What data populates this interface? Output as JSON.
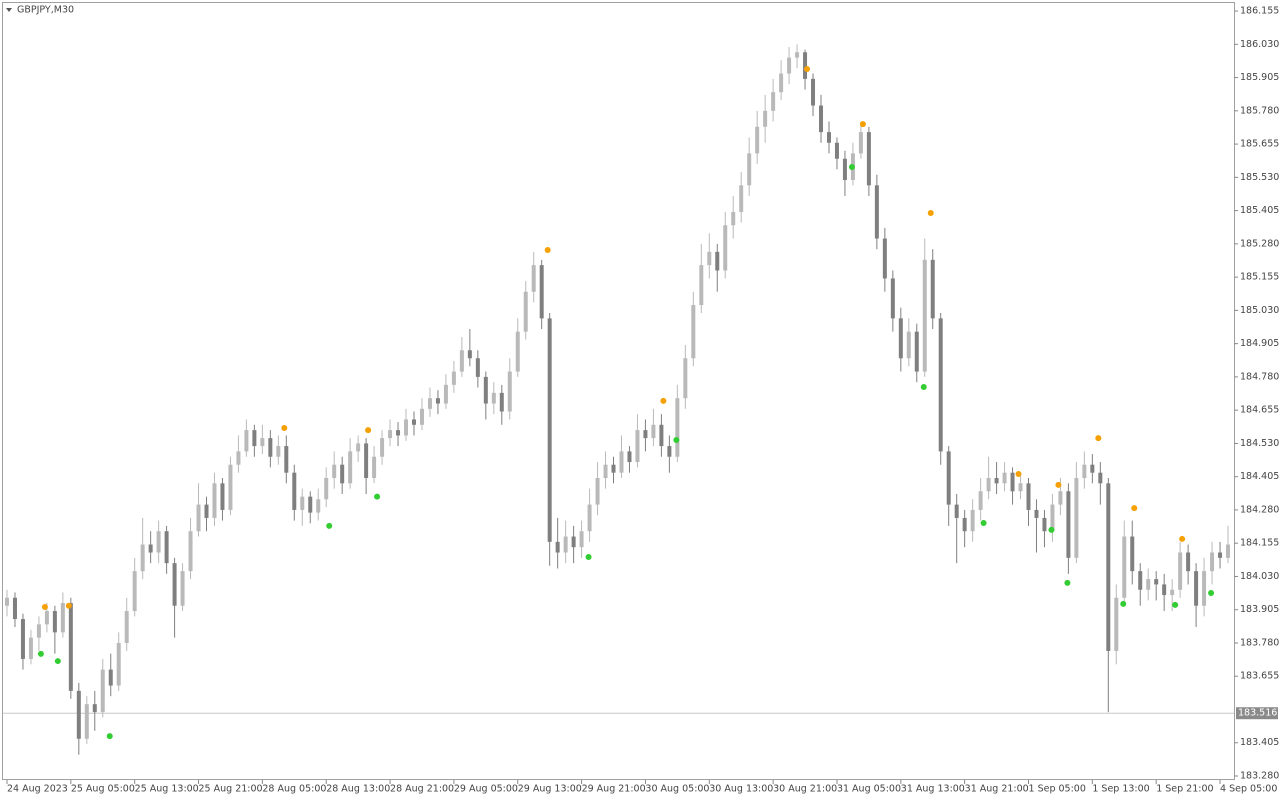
{
  "chart_data": {
    "type": "candlestick",
    "title": "GBPJPY,M30",
    "up_color": "#b9b9b9",
    "down_color": "#7f7f7f",
    "last_price_color": "#8a8a8a",
    "ylim": [
      183.265,
      186.189
    ],
    "yticks": [
      186.155,
      {
        "value": 186.03,
        "label": "186.030"
      },
      185.905,
      {
        "value": 185.78,
        "label": "185.780"
      },
      185.655,
      {
        "value": 185.53,
        "label": "185.530"
      },
      185.405,
      {
        "value": 185.28,
        "label": "185.280"
      },
      185.155,
      {
        "value": 185.03,
        "label": "185.030"
      },
      184.905,
      {
        "value": 184.78,
        "label": "184.780"
      },
      184.655,
      {
        "value": 184.53,
        "label": "184.530"
      },
      184.405,
      {
        "value": 184.28,
        "label": "184.280"
      },
      184.155,
      {
        "value": 184.03,
        "label": "184.030"
      },
      183.905,
      {
        "value": 183.78,
        "label": "183.780"
      },
      183.655,
      183.405,
      {
        "value": 183.28,
        "label": "183.280"
      }
    ],
    "xlim": [
      -0.5,
      153.75
    ],
    "xticks": [
      {
        "value": 0,
        "label": "24 Aug 2023"
      },
      {
        "value": 8,
        "label": "25 Aug 05:00"
      },
      {
        "value": 16,
        "label": "25 Aug 13:00"
      },
      {
        "value": 24,
        "label": "25 Aug 21:00"
      },
      {
        "value": 32,
        "label": "28 Aug 05:00"
      },
      {
        "value": 40,
        "label": "28 Aug 13:00"
      },
      {
        "value": 48,
        "label": "28 Aug 21:00"
      },
      {
        "value": 56,
        "label": "29 Aug 05:00"
      },
      {
        "value": 64,
        "label": "29 Aug 13:00"
      },
      {
        "value": 72,
        "label": "29 Aug 21:00"
      },
      {
        "value": 80,
        "label": "30 Aug 05:00"
      },
      {
        "value": 88,
        "label": "30 Aug 13:00"
      },
      {
        "value": 96,
        "label": "30 Aug 21:00"
      },
      {
        "value": 104,
        "label": "31 Aug 05:00"
      },
      {
        "value": 112,
        "label": "31 Aug 13:00"
      },
      {
        "value": 120,
        "label": "31 Aug 21:00"
      },
      {
        "value": 128,
        "label": "1 Sep 05:00"
      },
      {
        "value": 136,
        "label": "1 Sep 13:00"
      },
      {
        "value": 144,
        "label": "1 Sep 21:00"
      },
      {
        "value": 152,
        "label": "4 Sep 05:00"
      }
    ],
    "last_price": 183.516,
    "ohlc": [
      [
        183.92,
        183.98,
        183.88,
        183.95
      ],
      [
        183.95,
        183.97,
        183.84,
        183.87
      ],
      [
        183.87,
        183.89,
        183.68,
        183.72
      ],
      [
        183.72,
        183.83,
        183.7,
        183.8
      ],
      [
        183.8,
        183.88,
        183.75,
        183.85
      ],
      [
        183.85,
        183.93,
        183.82,
        183.9
      ],
      [
        183.9,
        183.92,
        183.74,
        183.82
      ],
      [
        183.82,
        183.97,
        183.8,
        183.93
      ],
      [
        183.93,
        183.95,
        183.57,
        183.6
      ],
      [
        183.6,
        183.63,
        183.36,
        183.42
      ],
      [
        183.42,
        183.58,
        183.4,
        183.55
      ],
      [
        183.55,
        183.6,
        183.45,
        183.52
      ],
      [
        183.52,
        183.72,
        183.5,
        183.68
      ],
      [
        183.68,
        183.74,
        183.58,
        183.62
      ],
      [
        183.62,
        183.82,
        183.6,
        183.78
      ],
      [
        183.78,
        183.95,
        183.75,
        183.9
      ],
      [
        183.9,
        184.1,
        183.88,
        184.05
      ],
      [
        184.05,
        184.25,
        184.02,
        184.15
      ],
      [
        184.15,
        184.2,
        184.08,
        184.12
      ],
      [
        184.12,
        184.24,
        184.08,
        184.2
      ],
      [
        184.2,
        184.22,
        184.04,
        184.08
      ],
      [
        184.08,
        184.1,
        183.8,
        183.92
      ],
      [
        183.92,
        184.08,
        183.9,
        184.05
      ],
      [
        184.05,
        184.25,
        184.02,
        184.2
      ],
      [
        184.2,
        184.38,
        184.18,
        184.3
      ],
      [
        184.3,
        184.33,
        184.2,
        184.25
      ],
      [
        184.25,
        184.42,
        184.22,
        184.38
      ],
      [
        184.38,
        184.4,
        184.24,
        184.28
      ],
      [
        184.28,
        184.48,
        184.26,
        184.45
      ],
      [
        184.45,
        184.56,
        184.42,
        184.5
      ],
      [
        184.5,
        184.62,
        184.48,
        184.58
      ],
      [
        184.58,
        184.6,
        184.48,
        184.52
      ],
      [
        184.52,
        184.6,
        184.49,
        184.55
      ],
      [
        184.55,
        184.58,
        184.44,
        184.48
      ],
      [
        184.48,
        184.56,
        184.45,
        184.52
      ],
      [
        184.52,
        184.56,
        184.38,
        184.42
      ],
      [
        184.42,
        184.45,
        184.24,
        184.28
      ],
      [
        184.28,
        184.36,
        184.22,
        184.33
      ],
      [
        184.33,
        184.35,
        184.23,
        184.27
      ],
      [
        184.27,
        184.36,
        184.24,
        184.32
      ],
      [
        184.32,
        184.44,
        184.29,
        184.4
      ],
      [
        184.4,
        184.5,
        184.36,
        184.45
      ],
      [
        184.45,
        184.48,
        184.34,
        184.38
      ],
      [
        184.38,
        184.55,
        184.36,
        184.5
      ],
      [
        184.5,
        184.56,
        184.46,
        184.53
      ],
      [
        184.53,
        184.55,
        184.34,
        184.4
      ],
      [
        184.4,
        184.52,
        184.38,
        184.48
      ],
      [
        184.48,
        184.58,
        184.45,
        184.55
      ],
      [
        184.55,
        184.62,
        184.52,
        184.58
      ],
      [
        184.58,
        184.61,
        184.52,
        184.56
      ],
      [
        184.56,
        184.66,
        184.54,
        184.62
      ],
      [
        184.62,
        184.65,
        184.56,
        184.6
      ],
      [
        184.6,
        184.7,
        184.58,
        184.66
      ],
      [
        184.66,
        184.74,
        184.63,
        184.7
      ],
      [
        184.7,
        184.73,
        184.64,
        184.68
      ],
      [
        184.68,
        184.79,
        184.66,
        184.75
      ],
      [
        184.75,
        184.84,
        184.72,
        184.8
      ],
      [
        184.8,
        184.93,
        184.78,
        184.88
      ],
      [
        184.88,
        184.96,
        184.82,
        184.85
      ],
      [
        184.85,
        184.88,
        184.74,
        184.78
      ],
      [
        184.78,
        184.8,
        184.62,
        184.68
      ],
      [
        184.68,
        184.76,
        184.64,
        184.72
      ],
      [
        184.72,
        184.75,
        184.6,
        184.65
      ],
      [
        184.65,
        184.85,
        184.62,
        184.8
      ],
      [
        184.8,
        185.0,
        184.78,
        184.95
      ],
      [
        184.95,
        185.14,
        184.92,
        185.1
      ],
      [
        185.1,
        185.25,
        185.06,
        185.2
      ],
      [
        185.2,
        185.22,
        184.96,
        185.0
      ],
      [
        185.0,
        185.02,
        184.07,
        184.16
      ],
      [
        184.16,
        184.25,
        184.06,
        184.12
      ],
      [
        184.12,
        184.24,
        184.08,
        184.18
      ],
      [
        184.18,
        184.22,
        184.08,
        184.14
      ],
      [
        184.14,
        184.24,
        184.1,
        184.2
      ],
      [
        184.2,
        184.36,
        184.16,
        184.3
      ],
      [
        184.3,
        184.46,
        184.26,
        184.4
      ],
      [
        184.4,
        184.5,
        184.36,
        184.45
      ],
      [
        184.45,
        184.48,
        184.38,
        184.42
      ],
      [
        184.42,
        184.56,
        184.4,
        184.5
      ],
      [
        184.5,
        184.52,
        184.42,
        184.46
      ],
      [
        184.46,
        184.64,
        184.44,
        184.58
      ],
      [
        184.58,
        184.62,
        184.5,
        184.55
      ],
      [
        184.55,
        184.66,
        184.52,
        184.6
      ],
      [
        184.6,
        184.64,
        184.48,
        184.52
      ],
      [
        184.52,
        184.56,
        184.42,
        184.48
      ],
      [
        184.48,
        184.75,
        184.46,
        184.7
      ],
      [
        184.7,
        184.9,
        184.66,
        184.85
      ],
      [
        184.85,
        185.1,
        184.82,
        185.05
      ],
      [
        185.05,
        185.28,
        185.02,
        185.2
      ],
      [
        185.2,
        185.32,
        185.15,
        185.25
      ],
      [
        185.25,
        185.28,
        185.1,
        185.18
      ],
      [
        185.18,
        185.4,
        185.15,
        185.35
      ],
      [
        185.35,
        185.46,
        185.3,
        185.4
      ],
      [
        185.4,
        185.55,
        185.36,
        185.5
      ],
      [
        185.5,
        185.68,
        185.46,
        185.62
      ],
      [
        185.62,
        185.78,
        185.58,
        185.72
      ],
      [
        185.72,
        185.84,
        185.66,
        185.78
      ],
      [
        185.78,
        185.9,
        185.74,
        185.85
      ],
      [
        185.85,
        185.97,
        185.82,
        185.92
      ],
      [
        185.92,
        186.02,
        185.88,
        185.98
      ],
      [
        185.98,
        186.03,
        185.94,
        186.0
      ],
      [
        186.0,
        186.01,
        185.86,
        185.9
      ],
      [
        185.9,
        185.92,
        185.76,
        185.8
      ],
      [
        185.8,
        185.84,
        185.66,
        185.7
      ],
      [
        185.7,
        185.74,
        185.62,
        185.66
      ],
      [
        185.66,
        185.68,
        185.56,
        185.6
      ],
      [
        185.6,
        185.63,
        185.46,
        185.52
      ],
      [
        185.52,
        185.66,
        185.5,
        185.62
      ],
      [
        185.62,
        185.74,
        185.6,
        185.7
      ],
      [
        185.7,
        185.72,
        185.46,
        185.5
      ],
      [
        185.5,
        185.54,
        185.26,
        185.3
      ],
      [
        185.3,
        185.34,
        185.1,
        185.15
      ],
      [
        185.15,
        185.18,
        184.95,
        185.0
      ],
      [
        185.0,
        185.04,
        184.8,
        184.85
      ],
      [
        184.85,
        185.0,
        184.82,
        184.95
      ],
      [
        184.95,
        184.98,
        184.76,
        184.8
      ],
      [
        184.8,
        185.3,
        184.78,
        185.22
      ],
      [
        185.22,
        185.26,
        184.96,
        185.0
      ],
      [
        185.0,
        185.02,
        184.45,
        184.5
      ],
      [
        184.5,
        184.52,
        184.22,
        184.3
      ],
      [
        184.3,
        184.34,
        184.08,
        184.25
      ],
      [
        184.25,
        184.28,
        184.14,
        184.2
      ],
      [
        184.2,
        184.32,
        184.16,
        184.28
      ],
      [
        184.28,
        184.4,
        184.24,
        184.35
      ],
      [
        184.35,
        184.48,
        184.32,
        184.4
      ],
      [
        184.4,
        184.46,
        184.34,
        184.38
      ],
      [
        184.38,
        184.46,
        184.35,
        184.42
      ],
      [
        184.42,
        184.44,
        184.3,
        184.35
      ],
      [
        184.35,
        184.42,
        184.32,
        184.38
      ],
      [
        184.38,
        184.4,
        184.22,
        184.28
      ],
      [
        184.28,
        184.32,
        184.12,
        184.25
      ],
      [
        184.25,
        184.28,
        184.14,
        184.2
      ],
      [
        184.2,
        184.34,
        184.16,
        184.3
      ],
      [
        184.3,
        184.4,
        184.26,
        184.35
      ],
      [
        184.35,
        184.38,
        184.04,
        184.1
      ],
      [
        184.1,
        184.46,
        184.08,
        184.4
      ],
      [
        184.4,
        184.5,
        184.36,
        184.45
      ],
      [
        184.45,
        184.49,
        184.38,
        184.42
      ],
      [
        184.42,
        184.46,
        184.3,
        184.38
      ],
      [
        184.38,
        184.4,
        183.52,
        183.75
      ],
      [
        183.75,
        184.0,
        183.7,
        183.95
      ],
      [
        183.95,
        184.24,
        183.92,
        184.18
      ],
      [
        184.18,
        184.24,
        184.0,
        184.05
      ],
      [
        184.05,
        184.08,
        183.92,
        183.98
      ],
      [
        183.98,
        184.06,
        183.94,
        184.02
      ],
      [
        184.02,
        184.05,
        183.94,
        184.0
      ],
      [
        184.0,
        184.04,
        183.9,
        183.96
      ],
      [
        183.96,
        184.02,
        183.9,
        183.98
      ],
      [
        183.98,
        184.16,
        183.95,
        184.12
      ],
      [
        184.12,
        184.15,
        184.0,
        184.05
      ],
      [
        184.05,
        184.08,
        183.84,
        183.92
      ],
      [
        183.92,
        184.1,
        183.88,
        184.05
      ],
      [
        184.05,
        184.16,
        184.0,
        184.12
      ],
      [
        184.12,
        184.16,
        184.06,
        184.1
      ],
      [
        184.1,
        184.22,
        184.08,
        184.15
      ]
    ],
    "markers": [
      {
        "color": "#f5a003",
        "x": [
          4.75,
          7.75,
          34.75,
          45.25,
          67.75,
          82.25,
          100.25,
          107.25,
          115.75,
          126.75,
          131.75,
          136.75,
          141.25,
          147.25
        ],
        "values": [
          183.915,
          183.92,
          184.588,
          184.58,
          185.257,
          184.69,
          185.937,
          185.73,
          185.396,
          184.415,
          184.374,
          184.55,
          184.287,
          184.171
        ]
      },
      {
        "color": "#32cd32",
        "x": [
          4.25,
          6.375,
          12.875,
          40.375,
          46.375,
          72.875,
          83.875,
          105.875,
          114.875,
          122.375,
          130.875,
          132.875,
          139.875,
          146.375,
          150.875
        ],
        "values": [
          183.739,
          183.712,
          183.43,
          184.22,
          184.33,
          184.103,
          184.543,
          185.569,
          184.742,
          184.231,
          184.205,
          184.006,
          183.927,
          183.923,
          183.968
        ]
      }
    ]
  }
}
